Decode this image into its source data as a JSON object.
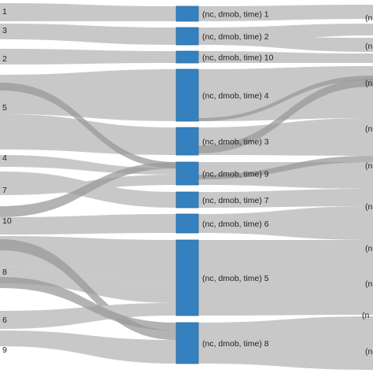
{
  "left_nodes": [
    {
      "label": "1"
    },
    {
      "label": "3"
    },
    {
      "label": "2"
    },
    {
      "label": "5"
    },
    {
      "label": "4"
    },
    {
      "label": "7"
    },
    {
      "label": "10"
    },
    {
      "label": "8"
    },
    {
      "label": "6"
    },
    {
      "label": "9"
    }
  ],
  "middle_nodes": [
    {
      "label": "(nc, dmob, time) 1"
    },
    {
      "label": "(nc, dmob, time) 2"
    },
    {
      "label": "(nc, dmob, time) 10"
    },
    {
      "label": "(nc, dmob, time) 4"
    },
    {
      "label": "(nc, dmob, time) 3"
    },
    {
      "label": "(nc, dmob, time) 9"
    },
    {
      "label": "(nc, dmob, time) 7"
    },
    {
      "label": "(nc, dmob, time) 6"
    },
    {
      "label": "(nc, dmob, time) 5"
    },
    {
      "label": "(nc, dmob, time) 8"
    }
  ],
  "right_edge_labels": [
    "(n",
    "(n",
    "(n",
    "(n",
    "(n",
    "(n",
    "(n",
    "(n",
    "(nc",
    "(n"
  ],
  "colors": {
    "node": "#3581bf",
    "node_border": "#2a6aa0",
    "link": "#c8c8c8",
    "link_highlight": "#9a9a9a",
    "text": "#222222"
  }
}
